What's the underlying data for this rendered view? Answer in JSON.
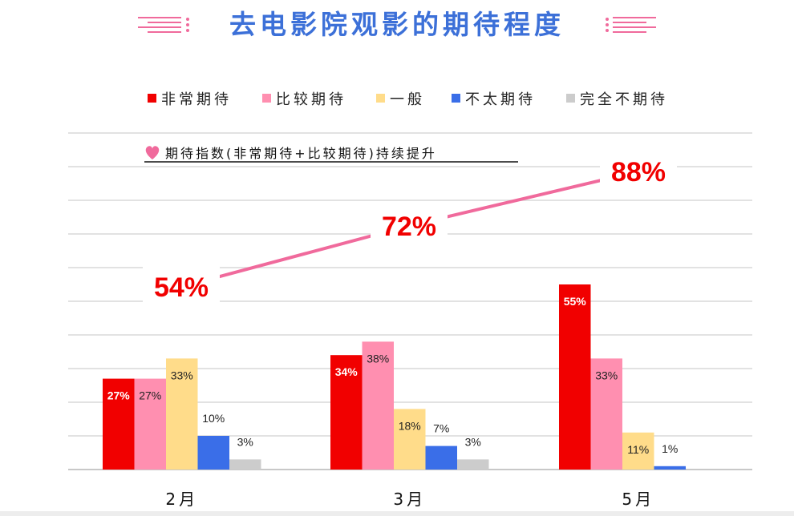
{
  "chart_data": {
    "type": "bar",
    "title": "去电影院观影的期待程度",
    "categories": [
      "2月",
      "3月",
      "5月"
    ],
    "series": [
      {
        "name": "非常期待",
        "color": "#f10000",
        "values": [
          27,
          34,
          55
        ],
        "labels": [
          "27%",
          "34%",
          "55%"
        ]
      },
      {
        "name": "比较期待",
        "color": "#ff8fb0",
        "values": [
          27,
          38,
          33
        ],
        "labels": [
          "27%",
          "38%",
          "33%"
        ]
      },
      {
        "name": "一般",
        "color": "#ffdc8a",
        "values": [
          33,
          18,
          11
        ],
        "labels": [
          "33%",
          "18%",
          "11%"
        ]
      },
      {
        "name": "不太期待",
        "color": "#3a6ee8",
        "values": [
          10,
          7,
          1
        ],
        "labels": [
          "10%",
          "7%",
          "1%"
        ]
      },
      {
        "name": "完全不期待",
        "color": "#cccccc",
        "values": [
          3,
          3,
          null
        ],
        "labels": [
          "3%",
          "3%",
          ""
        ]
      }
    ],
    "ylim": [
      0,
      100
    ],
    "grid": true,
    "legend": "top",
    "annotation": {
      "text": "期待指数(非常期待+比较期待)持续提升",
      "icon": "heart-icon",
      "line_color": "#f06a9c",
      "values": [
        54,
        72,
        88
      ],
      "labels": [
        "54%",
        "72%",
        "88%"
      ]
    }
  }
}
